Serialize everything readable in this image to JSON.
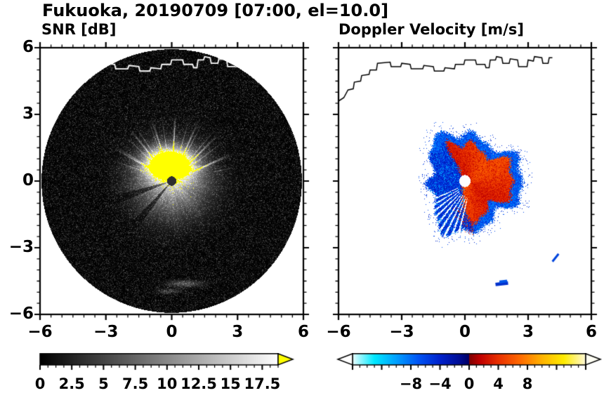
{
  "title": "Fukuoka, 20190709 [07:00, el=10.0]",
  "panels": {
    "snr": {
      "title": "SNR [dB]"
    },
    "doppler": {
      "title": "Doppler Velocity [m/s]"
    }
  },
  "chart_data": [
    {
      "type": "heatmap",
      "name": "snr",
      "title": "SNR [dB]",
      "xlim": [
        -6,
        6
      ],
      "ylim": [
        -6,
        6
      ],
      "xticks": [
        "−6",
        "−3",
        "0",
        "3",
        "6"
      ],
      "xtick_values": [
        -6,
        -3,
        0,
        3,
        6
      ],
      "yticks": [
        "6",
        "3",
        "0",
        "−3",
        "−6"
      ],
      "ytick_values": [
        6,
        3,
        0,
        -3,
        -6
      ],
      "minor_tick_step": 0.5,
      "scan_disk_radius": 5.93,
      "colorbar": {
        "ticks": [
          "0",
          "2.5",
          "5",
          "7.5",
          "10",
          "12.5",
          "15",
          "17.5"
        ],
        "tick_values": [
          0,
          2.5,
          5,
          7.5,
          10,
          12.5,
          15,
          17.5
        ],
        "range": [
          0,
          18.75
        ],
        "colors": [
          "#000000",
          "#ffffff"
        ],
        "over_arrow_color": "#ffff00"
      },
      "features": {
        "background": "black scan disk with sparse dark-gray speckle noise, white outside disk",
        "echo_core_center": [
          -0.1,
          0.78
        ],
        "echo_core_note": "saturated yellow region (SNR above colorbar max) just above radar site",
        "echo_fan_note": "bright gray echo with radial streaks fanning down/down-left to radius ~3",
        "radar_site_dot": {
          "pos": [
            0,
            0
          ],
          "radius": 0.21,
          "color": "#2e2e2e"
        },
        "ground_clutter_arcs": [
          [
            0.6,
            -4.62
          ],
          [
            -0.15,
            -4.97
          ]
        ],
        "coastline_color": "#ffffff"
      }
    },
    {
      "type": "heatmap",
      "name": "doppler",
      "title": "Doppler Velocity [m/s]",
      "xlim": [
        -6,
        6
      ],
      "ylim": [
        -6,
        6
      ],
      "xticks": [
        "−6",
        "−3",
        "0",
        "3",
        "6"
      ],
      "xtick_values": [
        -6,
        -3,
        0,
        3,
        6
      ],
      "minor_tick_step": 0.5,
      "colorbar": {
        "ticks": [
          "−8",
          "−4",
          "0",
          "4",
          "8"
        ],
        "tick_values": [
          -8,
          -4,
          0,
          4,
          8
        ],
        "range": [
          -16,
          16
        ],
        "stops": [
          [
            -16,
            "#eaffff"
          ],
          [
            -13,
            "#00e8ff"
          ],
          [
            -10,
            "#00a0ff"
          ],
          [
            -7,
            "#0055f5"
          ],
          [
            -4,
            "#0022cc"
          ],
          [
            -1.5,
            "#000f99"
          ],
          [
            -0.05,
            "#000066"
          ],
          [
            0.05,
            "#800000"
          ],
          [
            1.5,
            "#c00000"
          ],
          [
            4,
            "#e93000"
          ],
          [
            7,
            "#ff6a00"
          ],
          [
            10,
            "#ffb300"
          ],
          [
            13,
            "#ffec00"
          ],
          [
            16,
            "#fff9d8"
          ]
        ],
        "under_arrow_color": "#ffffff",
        "over_arrow_color": "#fffff4"
      },
      "features": {
        "blob_center": [
          0.3,
          -0.05
        ],
        "blob_radius": 2.2,
        "negative_region": "west/left half of echo: blue shades (flow toward radar, about -3 to -9 m/s)",
        "positive_region": "east/right-center wedge: red-orange (flow away, about +2 to +6 m/s)",
        "outer_rim_note": "thin blue rim along the eastern edge of the red wedge",
        "radar_site_dot": {
          "pos": [
            0,
            0
          ],
          "radius": 0.27,
          "color": "#ffffff"
        },
        "isolated_echoes": [
          [
            1.75,
            -4.62
          ],
          [
            4.3,
            -3.45
          ]
        ],
        "coastline_color": "#000000"
      }
    }
  ],
  "coastline": [
    [
      -6.0,
      3.6
    ],
    [
      -5.75,
      3.75
    ],
    [
      -5.55,
      4.1
    ],
    [
      -5.3,
      4.15
    ],
    [
      -5.25,
      4.45
    ],
    [
      -4.95,
      4.5
    ],
    [
      -4.9,
      4.75
    ],
    [
      -4.55,
      4.8
    ],
    [
      -4.5,
      5.0
    ],
    [
      -4.2,
      5.0
    ],
    [
      -4.15,
      5.3
    ],
    [
      -3.55,
      5.35
    ],
    [
      -3.5,
      5.15
    ],
    [
      -3.05,
      5.15
    ],
    [
      -3.0,
      5.3
    ],
    [
      -2.6,
      5.25
    ],
    [
      -2.55,
      5.05
    ],
    [
      -2.0,
      5.05
    ],
    [
      -1.95,
      5.2
    ],
    [
      -1.5,
      5.15
    ],
    [
      -1.45,
      4.95
    ],
    [
      -1.0,
      4.95
    ],
    [
      -0.95,
      5.1
    ],
    [
      -0.5,
      5.05
    ],
    [
      -0.45,
      5.25
    ],
    [
      -0.05,
      5.25
    ],
    [
      0.0,
      5.45
    ],
    [
      0.5,
      5.45
    ],
    [
      0.55,
      5.25
    ],
    [
      0.95,
      5.25
    ],
    [
      1.0,
      5.1
    ],
    [
      1.15,
      5.1
    ],
    [
      1.2,
      5.45
    ],
    [
      1.45,
      5.45
    ],
    [
      1.5,
      5.6
    ],
    [
      1.75,
      5.55
    ],
    [
      1.8,
      5.3
    ],
    [
      2.1,
      5.3
    ],
    [
      2.15,
      5.5
    ],
    [
      2.5,
      5.45
    ],
    [
      2.55,
      5.15
    ],
    [
      2.95,
      5.15
    ],
    [
      3.0,
      5.45
    ],
    [
      3.25,
      5.4
    ],
    [
      3.3,
      5.6
    ],
    [
      3.65,
      5.55
    ],
    [
      3.7,
      5.3
    ],
    [
      3.95,
      5.3
    ],
    [
      4.0,
      5.55
    ],
    [
      4.15,
      5.55
    ]
  ]
}
